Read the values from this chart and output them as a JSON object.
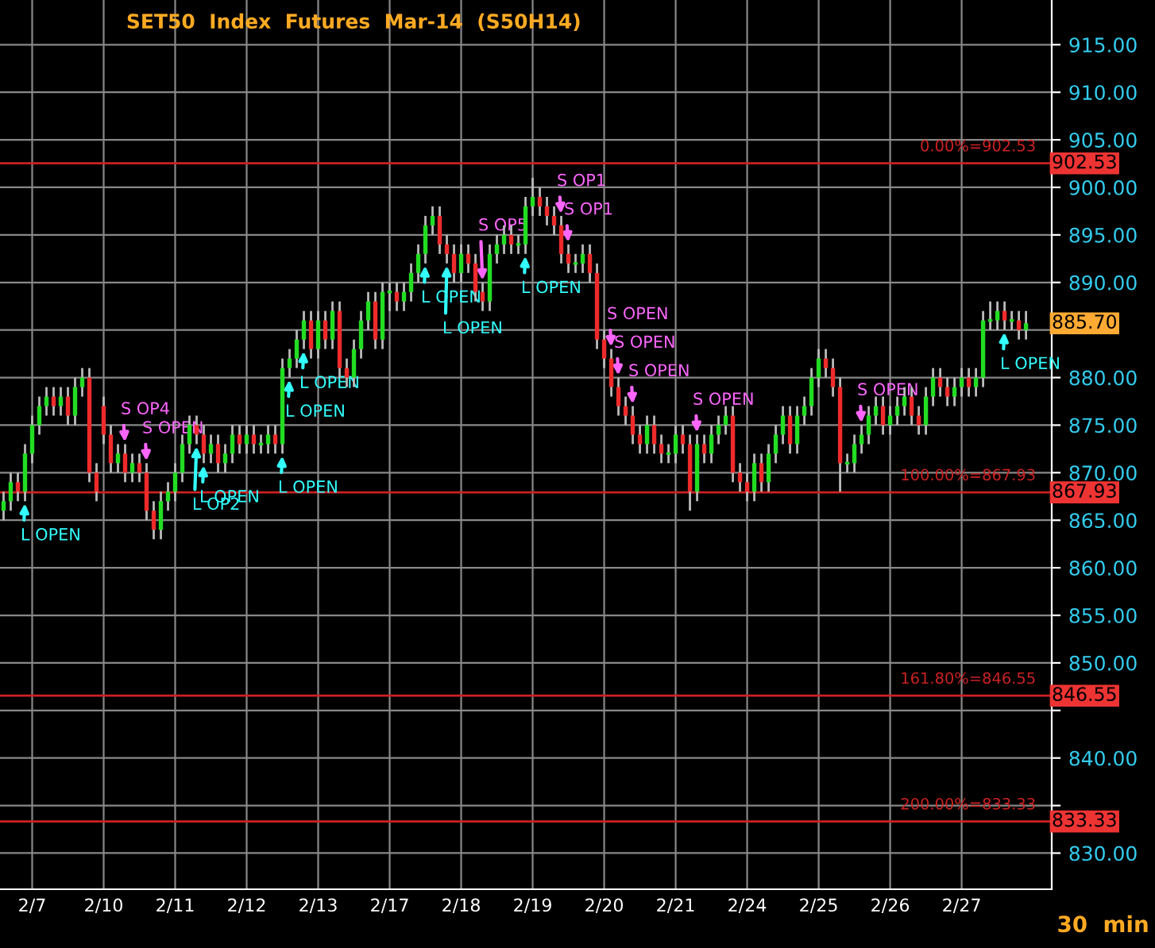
{
  "chart_data": {
    "type": "candlestick",
    "title": "SET50  Index  Futures  Mar-14  (S50H14)",
    "categories": [
      null,
      null,
      null,
      null,
      "2/7",
      null,
      null,
      null,
      null,
      null,
      null,
      null,
      null,
      null,
      "2/10",
      null,
      null,
      null,
      null,
      null,
      null,
      null,
      null,
      null,
      "2/11",
      null,
      null,
      null,
      null,
      null,
      null,
      null,
      null,
      null,
      "2/12",
      null,
      null,
      null,
      null,
      null,
      null,
      null,
      null,
      null,
      "2/13",
      null,
      null,
      null,
      null,
      null,
      null,
      null,
      null,
      null,
      "2/17",
      null,
      null,
      null,
      null,
      null,
      null,
      null,
      null,
      null,
      "2/18",
      null,
      null,
      null,
      null,
      null,
      null,
      null,
      null,
      null,
      "2/19",
      null,
      null,
      null,
      null,
      null,
      null,
      null,
      null,
      null,
      "2/20",
      null,
      null,
      null,
      null,
      null,
      null,
      null,
      null,
      null,
      "2/21",
      null,
      null,
      null,
      null,
      null,
      null,
      null,
      null,
      null,
      "2/24",
      null,
      null,
      null,
      null,
      null,
      null,
      null,
      null,
      null,
      "2/25",
      null,
      null,
      null,
      null,
      null,
      null,
      null,
      null,
      null,
      "2/26",
      null,
      null,
      null,
      null,
      null,
      null,
      null,
      null,
      null,
      "2/27",
      null,
      null,
      null,
      null,
      null,
      null,
      null,
      null,
      null
    ],
    "ohlc": [
      [
        866,
        868,
        865,
        867
      ],
      [
        867,
        870,
        866,
        869
      ],
      [
        869,
        870,
        867,
        868
      ],
      [
        868,
        873,
        867,
        872
      ],
      [
        872,
        876,
        871,
        875
      ],
      [
        875,
        878,
        874,
        877
      ],
      [
        877,
        879,
        876,
        878
      ],
      [
        878,
        879,
        876,
        877
      ],
      [
        877,
        879,
        876,
        878
      ],
      [
        878,
        879,
        875,
        876
      ],
      [
        876,
        880,
        875,
        879
      ],
      [
        879,
        881,
        878,
        880
      ],
      [
        880,
        881,
        869,
        870
      ],
      [
        870,
        871,
        867,
        868
      ],
      [
        877,
        878,
        873,
        874
      ],
      [
        874,
        875,
        870,
        871
      ],
      [
        871,
        873,
        870,
        872
      ],
      [
        872,
        873,
        869,
        870
      ],
      [
        870,
        872,
        869,
        871
      ],
      [
        871,
        872,
        869,
        870
      ],
      [
        870,
        871,
        865,
        866
      ],
      [
        866,
        867,
        863,
        864
      ],
      [
        864,
        868,
        863,
        867
      ],
      [
        867,
        869,
        866,
        868
      ],
      [
        868,
        871,
        867,
        870
      ],
      [
        870,
        874,
        869,
        873
      ],
      [
        873,
        876,
        872,
        875
      ],
      [
        875,
        876,
        873,
        874
      ],
      [
        874,
        875,
        871,
        872
      ],
      [
        872,
        874,
        871,
        873
      ],
      [
        873,
        874,
        870,
        871
      ],
      [
        871,
        873,
        870,
        872
      ],
      [
        872,
        875,
        871,
        874
      ],
      [
        874,
        875,
        872,
        873
      ],
      [
        873,
        875,
        872,
        874
      ],
      [
        874,
        875,
        872,
        873
      ],
      [
        873,
        874,
        872,
        873
      ],
      [
        873,
        875,
        872,
        874
      ],
      [
        874,
        875,
        872,
        873
      ],
      [
        873,
        882,
        872,
        881
      ],
      [
        881,
        883,
        880,
        882
      ],
      [
        882,
        885,
        881,
        884
      ],
      [
        884,
        887,
        883,
        886
      ],
      [
        886,
        887,
        882,
        883
      ],
      [
        883,
        887,
        882,
        886
      ],
      [
        886,
        887,
        883,
        884
      ],
      [
        884,
        888,
        883,
        887
      ],
      [
        887,
        888,
        880,
        881
      ],
      [
        881,
        882,
        879,
        880
      ],
      [
        880,
        884,
        879,
        883
      ],
      [
        883,
        887,
        882,
        886
      ],
      [
        886,
        889,
        885,
        888
      ],
      [
        888,
        889,
        883,
        884
      ],
      [
        884,
        890,
        883,
        889
      ],
      [
        889,
        890,
        887,
        889
      ],
      [
        889,
        890,
        887,
        888
      ],
      [
        888,
        890,
        887,
        889
      ],
      [
        889,
        892,
        888,
        891
      ],
      [
        891,
        894,
        890,
        893
      ],
      [
        893,
        897,
        892,
        896
      ],
      [
        896,
        898,
        895,
        897
      ],
      [
        897,
        898,
        893,
        894
      ],
      [
        894,
        895,
        892,
        893
      ],
      [
        893,
        894,
        890,
        891
      ],
      [
        891,
        894,
        890,
        893
      ],
      [
        893,
        894,
        891,
        892
      ],
      [
        892,
        893,
        888,
        889
      ],
      [
        889,
        890,
        887,
        888
      ],
      [
        888,
        894,
        887,
        893
      ],
      [
        893,
        895,
        892,
        894
      ],
      [
        894,
        896,
        893,
        895
      ],
      [
        895,
        896,
        893,
        894
      ],
      [
        894,
        895,
        893,
        894
      ],
      [
        894,
        899,
        893,
        898
      ],
      [
        898,
        901,
        897,
        899
      ],
      [
        899,
        900,
        897,
        898
      ],
      [
        898,
        899,
        896,
        897
      ],
      [
        897,
        898,
        895,
        896
      ],
      [
        896,
        897,
        892,
        893
      ],
      [
        893,
        894,
        891,
        892
      ],
      [
        892,
        893,
        891,
        892
      ],
      [
        892,
        894,
        891,
        893
      ],
      [
        893,
        894,
        890,
        891
      ],
      [
        891,
        892,
        883,
        884
      ],
      [
        884,
        885,
        881,
        882
      ],
      [
        882,
        883,
        878,
        879
      ],
      [
        879,
        880,
        876,
        877
      ],
      [
        877,
        878,
        875,
        876
      ],
      [
        876,
        877,
        873,
        874
      ],
      [
        874,
        875,
        872,
        873
      ],
      [
        873,
        876,
        872,
        875
      ],
      [
        875,
        876,
        872,
        873
      ],
      [
        873,
        874,
        871,
        872
      ],
      [
        872,
        873,
        871,
        872
      ],
      [
        872,
        875,
        871,
        874
      ],
      [
        874,
        875,
        872,
        873
      ],
      [
        873,
        874,
        866,
        868
      ],
      [
        868,
        874,
        867,
        873
      ],
      [
        873,
        874,
        871,
        872
      ],
      [
        872,
        875,
        871,
        874
      ],
      [
        874,
        876,
        873,
        875
      ],
      [
        875,
        877,
        874,
        876
      ],
      [
        876,
        877,
        869,
        870
      ],
      [
        870,
        871,
        868,
        869
      ],
      [
        869,
        870,
        867,
        868
      ],
      [
        868,
        872,
        867,
        871
      ],
      [
        871,
        872,
        868,
        869
      ],
      [
        869,
        873,
        868,
        872
      ],
      [
        872,
        875,
        871,
        874
      ],
      [
        874,
        877,
        873,
        876
      ],
      [
        876,
        877,
        872,
        873
      ],
      [
        873,
        877,
        872,
        876
      ],
      [
        876,
        878,
        875,
        877
      ],
      [
        877,
        881,
        876,
        880
      ],
      [
        880,
        883,
        879,
        882
      ],
      [
        882,
        883,
        880,
        881
      ],
      [
        881,
        882,
        878,
        879
      ],
      [
        879,
        880,
        868,
        871
      ],
      [
        871,
        872,
        870,
        871
      ],
      [
        871,
        874,
        870,
        873
      ],
      [
        873,
        875,
        872,
        874
      ],
      [
        874,
        877,
        873,
        876
      ],
      [
        876,
        878,
        875,
        877
      ],
      [
        877,
        878,
        874,
        875
      ],
      [
        875,
        877,
        874,
        876
      ],
      [
        876,
        878,
        875,
        877
      ],
      [
        877,
        879,
        876,
        878
      ],
      [
        878,
        879,
        875,
        876
      ],
      [
        876,
        877,
        874,
        875
      ],
      [
        875,
        879,
        874,
        878
      ],
      [
        878,
        881,
        877,
        880
      ],
      [
        880,
        881,
        878,
        879
      ],
      [
        879,
        880,
        877,
        878
      ],
      [
        878,
        880,
        877,
        879
      ],
      [
        879,
        881,
        878,
        880
      ],
      [
        880,
        881,
        878,
        879
      ],
      [
        879,
        881,
        878,
        880
      ],
      [
        880,
        887,
        879,
        886
      ],
      [
        886,
        888,
        885,
        886
      ],
      [
        886,
        888,
        885,
        887
      ],
      [
        887,
        888,
        885,
        886
      ],
      [
        886,
        887,
        885,
        886
      ],
      [
        886,
        887,
        884,
        885
      ],
      [
        885,
        887,
        884,
        885.7
      ]
    ],
    "ylim": [
      826.2,
      919.7
    ],
    "yticks": [
      {
        "value": 830,
        "label": "830.00"
      },
      {
        "value": 835,
        "label": null
      },
      {
        "value": 840,
        "label": "840.00"
      },
      {
        "value": 845,
        "label": null
      },
      {
        "value": 850,
        "label": "850.00"
      },
      {
        "value": 855,
        "label": "855.00"
      },
      {
        "value": 860,
        "label": "860.00"
      },
      {
        "value": 865,
        "label": "865.00"
      },
      {
        "value": 870,
        "label": "870.00"
      },
      {
        "value": 875,
        "label": "875.00"
      },
      {
        "value": 880,
        "label": "880.00"
      },
      {
        "value": 885,
        "label": null
      },
      {
        "value": 890,
        "label": "890.00"
      },
      {
        "value": 895,
        "label": "895.00"
      },
      {
        "value": 900,
        "label": "900.00"
      },
      {
        "value": 905,
        "label": "905.00"
      },
      {
        "value": 910,
        "label": "910.00"
      },
      {
        "value": 915,
        "label": "915.00"
      }
    ],
    "grid": true,
    "ref_lines": [
      {
        "axis": "y",
        "value": 902.53,
        "label": "0.00%=902.53",
        "color": "#cc2222"
      },
      {
        "axis": "y",
        "value": 867.93,
        "label": "100.00%=867.93",
        "color": "#cc2222"
      },
      {
        "axis": "y",
        "value": 846.55,
        "label": "161.80%=846.55",
        "color": "#cc2222"
      },
      {
        "axis": "y",
        "value": 833.33,
        "label": "200.00%=833.33",
        "color": "#cc2222"
      }
    ],
    "annotations": [
      "L OPEN",
      "S OP4",
      "S OPEN",
      "L OP2",
      "L OPEN",
      "L OPEN",
      "L OPEN",
      "L OPEN",
      "L OPEN",
      "L OPEN",
      "S OP5",
      "L OPEN",
      "S OP1",
      "S OP1",
      "S OPEN",
      "S OPEN",
      "S OPEN",
      "S OPEN",
      "S OPEN",
      "L OPEN",
      "902.53",
      "867.93",
      "846.55",
      "833.33",
      "885.70",
      "30  min"
    ]
  }
}
